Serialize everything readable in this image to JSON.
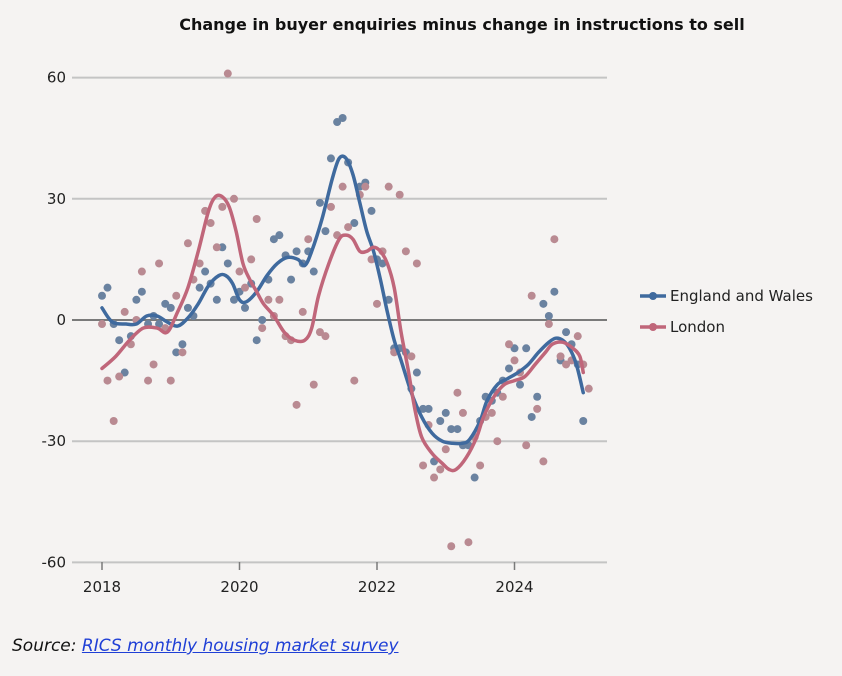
{
  "chart_data": {
    "type": "line",
    "title": "Change in buyer enquiries minus change in instructions to sell",
    "xlabel": "",
    "ylabel": "",
    "xlim": [
      2017.8,
      2025.35
    ],
    "ylim": [
      -62,
      66
    ],
    "x_ticks": [
      {
        "value": 2018,
        "label": "2018"
      },
      {
        "value": 2020,
        "label": "2020"
      },
      {
        "value": 2022,
        "label": "2022"
      },
      {
        "value": 2024,
        "label": "2024"
      }
    ],
    "y_ticks": [
      {
        "value": 60,
        "label": "60"
      },
      {
        "value": 30,
        "label": "30"
      },
      {
        "value": 0,
        "label": "0"
      },
      {
        "value": -30,
        "label": "-30"
      },
      {
        "value": -60,
        "label": "-60"
      }
    ],
    "grid": "horizontal",
    "legend_position": "right",
    "series": [
      {
        "name": "England and Wales",
        "color": "#3f6a9e",
        "dot_color": "#6a82a0",
        "trend": [
          [
            2018.0,
            3
          ],
          [
            2018.15,
            -0.5
          ],
          [
            2018.35,
            -1
          ],
          [
            2018.5,
            -1
          ],
          [
            2018.65,
            1
          ],
          [
            2018.8,
            1
          ],
          [
            2018.95,
            -0.5
          ],
          [
            2019.1,
            -1.5
          ],
          [
            2019.25,
            0.5
          ],
          [
            2019.4,
            4
          ],
          [
            2019.55,
            8.5
          ],
          [
            2019.7,
            11
          ],
          [
            2019.8,
            11
          ],
          [
            2019.9,
            9
          ],
          [
            2020.0,
            5
          ],
          [
            2020.1,
            4.5
          ],
          [
            2020.25,
            7
          ],
          [
            2020.4,
            11
          ],
          [
            2020.55,
            14
          ],
          [
            2020.7,
            15.5
          ],
          [
            2020.85,
            15
          ],
          [
            2020.95,
            13.5
          ],
          [
            2021.05,
            17
          ],
          [
            2021.2,
            25
          ],
          [
            2021.35,
            35
          ],
          [
            2021.45,
            40
          ],
          [
            2021.55,
            40
          ],
          [
            2021.65,
            36
          ],
          [
            2021.75,
            29
          ],
          [
            2021.85,
            22
          ],
          [
            2021.95,
            17
          ],
          [
            2022.05,
            10
          ],
          [
            2022.15,
            2
          ],
          [
            2022.25,
            -5
          ],
          [
            2022.35,
            -10
          ],
          [
            2022.5,
            -18
          ],
          [
            2022.65,
            -24
          ],
          [
            2022.8,
            -28
          ],
          [
            2022.95,
            -30
          ],
          [
            2023.1,
            -30.5
          ],
          [
            2023.25,
            -30.5
          ],
          [
            2023.35,
            -29.5
          ],
          [
            2023.5,
            -25
          ],
          [
            2023.6,
            -20
          ],
          [
            2023.75,
            -16
          ],
          [
            2023.9,
            -14.5
          ],
          [
            2024.05,
            -13
          ],
          [
            2024.2,
            -11
          ],
          [
            2024.35,
            -8
          ],
          [
            2024.5,
            -5.5
          ],
          [
            2024.6,
            -4.5
          ],
          [
            2024.7,
            -5
          ],
          [
            2024.8,
            -7
          ],
          [
            2024.9,
            -11
          ],
          [
            2025.0,
            -18
          ]
        ],
        "points": [
          [
            2018.0,
            6
          ],
          [
            2018.08,
            8
          ],
          [
            2018.17,
            -1
          ],
          [
            2018.25,
            -5
          ],
          [
            2018.33,
            -13
          ],
          [
            2018.42,
            -4
          ],
          [
            2018.5,
            5
          ],
          [
            2018.58,
            7
          ],
          [
            2018.67,
            -1
          ],
          [
            2018.75,
            1
          ],
          [
            2018.83,
            -1
          ],
          [
            2018.92,
            4
          ],
          [
            2019.0,
            3
          ],
          [
            2019.08,
            -8
          ],
          [
            2019.17,
            -6
          ],
          [
            2019.25,
            3
          ],
          [
            2019.33,
            1
          ],
          [
            2019.42,
            8
          ],
          [
            2019.5,
            12
          ],
          [
            2019.58,
            9
          ],
          [
            2019.67,
            5
          ],
          [
            2019.75,
            18
          ],
          [
            2019.83,
            14
          ],
          [
            2019.92,
            5
          ],
          [
            2020.0,
            7
          ],
          [
            2020.08,
            3
          ],
          [
            2020.17,
            9
          ],
          [
            2020.25,
            -5
          ],
          [
            2020.33,
            0
          ],
          [
            2020.42,
            10
          ],
          [
            2020.5,
            20
          ],
          [
            2020.58,
            21
          ],
          [
            2020.67,
            16
          ],
          [
            2020.75,
            10
          ],
          [
            2020.83,
            17
          ],
          [
            2020.92,
            14
          ],
          [
            2021.0,
            17
          ],
          [
            2021.08,
            12
          ],
          [
            2021.17,
            29
          ],
          [
            2021.25,
            22
          ],
          [
            2021.33,
            40
          ],
          [
            2021.42,
            49
          ],
          [
            2021.5,
            50
          ],
          [
            2021.58,
            39
          ],
          [
            2021.67,
            24
          ],
          [
            2021.75,
            33
          ],
          [
            2021.83,
            34
          ],
          [
            2021.92,
            27
          ],
          [
            2022.0,
            15
          ],
          [
            2022.08,
            14
          ],
          [
            2022.17,
            5
          ],
          [
            2022.25,
            -7
          ],
          [
            2022.33,
            -7
          ],
          [
            2022.42,
            -8
          ],
          [
            2022.5,
            -17
          ],
          [
            2022.58,
            -13
          ],
          [
            2022.67,
            -22
          ],
          [
            2022.75,
            -22
          ],
          [
            2022.83,
            -35
          ],
          [
            2022.92,
            -25
          ],
          [
            2023.0,
            -23
          ],
          [
            2023.08,
            -27
          ],
          [
            2023.17,
            -27
          ],
          [
            2023.25,
            -31
          ],
          [
            2023.33,
            -31
          ],
          [
            2023.42,
            -39
          ],
          [
            2023.5,
            -25
          ],
          [
            2023.58,
            -19
          ],
          [
            2023.67,
            -20
          ],
          [
            2023.75,
            -18
          ],
          [
            2023.83,
            -15
          ],
          [
            2023.92,
            -12
          ],
          [
            2024.0,
            -7
          ],
          [
            2024.08,
            -16
          ],
          [
            2024.17,
            -7
          ],
          [
            2024.25,
            -24
          ],
          [
            2024.33,
            -19
          ],
          [
            2024.42,
            4
          ],
          [
            2024.5,
            1
          ],
          [
            2024.58,
            7
          ],
          [
            2024.67,
            -10
          ],
          [
            2024.75,
            -3
          ],
          [
            2024.83,
            -6
          ],
          [
            2024.92,
            -11
          ],
          [
            2025.0,
            -25
          ]
        ]
      },
      {
        "name": "London",
        "color": "#c0667a",
        "dot_color": "#b98a92",
        "trend": [
          [
            2018.0,
            -12
          ],
          [
            2018.2,
            -9
          ],
          [
            2018.4,
            -5
          ],
          [
            2018.6,
            -2
          ],
          [
            2018.8,
            -2
          ],
          [
            2018.95,
            -3
          ],
          [
            2019.1,
            2
          ],
          [
            2019.25,
            8
          ],
          [
            2019.4,
            17
          ],
          [
            2019.55,
            27
          ],
          [
            2019.65,
            30.5
          ],
          [
            2019.75,
            30.5
          ],
          [
            2019.85,
            28
          ],
          [
            2019.95,
            22
          ],
          [
            2020.05,
            14
          ],
          [
            2020.15,
            10
          ],
          [
            2020.25,
            7
          ],
          [
            2020.35,
            4
          ],
          [
            2020.5,
            1
          ],
          [
            2020.65,
            -3
          ],
          [
            2020.8,
            -5
          ],
          [
            2020.95,
            -5
          ],
          [
            2021.05,
            -2
          ],
          [
            2021.15,
            6
          ],
          [
            2021.3,
            14
          ],
          [
            2021.45,
            20
          ],
          [
            2021.55,
            21
          ],
          [
            2021.65,
            20
          ],
          [
            2021.75,
            17
          ],
          [
            2021.85,
            17
          ],
          [
            2021.95,
            18
          ],
          [
            2022.05,
            17
          ],
          [
            2022.15,
            14
          ],
          [
            2022.25,
            8
          ],
          [
            2022.35,
            -3
          ],
          [
            2022.45,
            -12
          ],
          [
            2022.55,
            -22
          ],
          [
            2022.65,
            -29
          ],
          [
            2022.8,
            -33
          ],
          [
            2022.95,
            -35.5
          ],
          [
            2023.05,
            -37
          ],
          [
            2023.15,
            -37
          ],
          [
            2023.3,
            -34
          ],
          [
            2023.45,
            -29
          ],
          [
            2023.55,
            -24
          ],
          [
            2023.7,
            -19
          ],
          [
            2023.85,
            -16
          ],
          [
            2024.0,
            -15
          ],
          [
            2024.15,
            -14
          ],
          [
            2024.3,
            -11
          ],
          [
            2024.45,
            -8
          ],
          [
            2024.55,
            -6
          ],
          [
            2024.7,
            -5.5
          ],
          [
            2024.85,
            -7
          ],
          [
            2024.95,
            -9
          ],
          [
            2025.0,
            -13
          ]
        ],
        "points": [
          [
            2018.0,
            -1
          ],
          [
            2018.08,
            -15
          ],
          [
            2018.17,
            -25
          ],
          [
            2018.25,
            -14
          ],
          [
            2018.33,
            2
          ],
          [
            2018.42,
            -6
          ],
          [
            2018.5,
            0
          ],
          [
            2018.58,
            12
          ],
          [
            2018.67,
            -15
          ],
          [
            2018.75,
            -11
          ],
          [
            2018.83,
            14
          ],
          [
            2018.92,
            -2
          ],
          [
            2019.0,
            -15
          ],
          [
            2019.08,
            6
          ],
          [
            2019.17,
            -8
          ],
          [
            2019.25,
            19
          ],
          [
            2019.33,
            10
          ],
          [
            2019.42,
            14
          ],
          [
            2019.5,
            27
          ],
          [
            2019.58,
            24
          ],
          [
            2019.67,
            18
          ],
          [
            2019.75,
            28
          ],
          [
            2019.83,
            61
          ],
          [
            2019.92,
            30
          ],
          [
            2020.0,
            12
          ],
          [
            2020.08,
            8
          ],
          [
            2020.17,
            15
          ],
          [
            2020.25,
            25
          ],
          [
            2020.33,
            -2
          ],
          [
            2020.42,
            5
          ],
          [
            2020.5,
            1
          ],
          [
            2020.58,
            5
          ],
          [
            2020.67,
            -4
          ],
          [
            2020.75,
            -5
          ],
          [
            2020.83,
            -21
          ],
          [
            2020.92,
            2
          ],
          [
            2021.0,
            20
          ],
          [
            2021.08,
            -16
          ],
          [
            2021.17,
            -3
          ],
          [
            2021.25,
            -4
          ],
          [
            2021.33,
            28
          ],
          [
            2021.42,
            21
          ],
          [
            2021.5,
            33
          ],
          [
            2021.58,
            23
          ],
          [
            2021.67,
            -15
          ],
          [
            2021.75,
            31
          ],
          [
            2021.83,
            33
          ],
          [
            2021.92,
            15
          ],
          [
            2022.0,
            4
          ],
          [
            2022.08,
            17
          ],
          [
            2022.17,
            33
          ],
          [
            2022.25,
            -8
          ],
          [
            2022.33,
            31
          ],
          [
            2022.42,
            17
          ],
          [
            2022.5,
            -9
          ],
          [
            2022.58,
            14
          ],
          [
            2022.67,
            -36
          ],
          [
            2022.75,
            -26
          ],
          [
            2022.83,
            -39
          ],
          [
            2022.92,
            -37
          ],
          [
            2023.0,
            -32
          ],
          [
            2023.08,
            -56
          ],
          [
            2023.17,
            -18
          ],
          [
            2023.25,
            -23
          ],
          [
            2023.33,
            -55
          ],
          [
            2023.42,
            -29
          ],
          [
            2023.5,
            -36
          ],
          [
            2023.58,
            -24
          ],
          [
            2023.67,
            -23
          ],
          [
            2023.75,
            -30
          ],
          [
            2023.83,
            -19
          ],
          [
            2023.92,
            -6
          ],
          [
            2024.0,
            -10
          ],
          [
            2024.08,
            -13
          ],
          [
            2024.17,
            -31
          ],
          [
            2024.25,
            6
          ],
          [
            2024.33,
            -22
          ],
          [
            2024.42,
            -35
          ],
          [
            2024.5,
            -1
          ],
          [
            2024.58,
            20
          ],
          [
            2024.67,
            -9
          ],
          [
            2024.75,
            -11
          ],
          [
            2024.83,
            -10
          ],
          [
            2024.92,
            -4
          ],
          [
            2025.0,
            -11
          ],
          [
            2025.08,
            -17
          ]
        ]
      }
    ]
  },
  "source": {
    "prefix": "Source: ",
    "link_text": "RICS monthly housing market survey"
  }
}
